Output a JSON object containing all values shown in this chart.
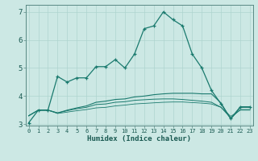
{
  "xlabel": "Humidex (Indice chaleur)",
  "background_color": "#cce8e4",
  "grid_color": "#aed4cf",
  "line_color": "#1a7a6e",
  "x_values": [
    0,
    1,
    2,
    3,
    4,
    5,
    6,
    7,
    8,
    9,
    10,
    11,
    12,
    13,
    14,
    15,
    16,
    17,
    18,
    19,
    20,
    21,
    22,
    23
  ],
  "series1": [
    3.05,
    3.5,
    3.5,
    4.7,
    4.5,
    4.65,
    4.65,
    5.05,
    5.05,
    5.3,
    5.0,
    5.5,
    6.4,
    6.5,
    7.0,
    6.72,
    6.5,
    5.5,
    5.0,
    4.2,
    3.72,
    3.2,
    3.62,
    3.62
  ],
  "series2": [
    3.3,
    3.5,
    3.5,
    3.4,
    3.5,
    3.58,
    3.65,
    3.78,
    3.82,
    3.88,
    3.9,
    3.97,
    4.0,
    4.05,
    4.08,
    4.1,
    4.1,
    4.1,
    4.08,
    4.08,
    3.75,
    3.18,
    3.6,
    3.6
  ],
  "series3": [
    3.3,
    3.5,
    3.5,
    3.4,
    3.48,
    3.55,
    3.6,
    3.7,
    3.72,
    3.78,
    3.8,
    3.85,
    3.87,
    3.89,
    3.9,
    3.9,
    3.88,
    3.85,
    3.82,
    3.78,
    3.6,
    3.22,
    3.52,
    3.52
  ],
  "series4": [
    3.3,
    3.5,
    3.5,
    3.38,
    3.43,
    3.48,
    3.52,
    3.58,
    3.6,
    3.65,
    3.68,
    3.72,
    3.74,
    3.76,
    3.78,
    3.79,
    3.79,
    3.77,
    3.75,
    3.72,
    3.6,
    3.28,
    3.5,
    3.5
  ],
  "ylim": [
    2.95,
    7.25
  ],
  "yticks": [
    3,
    4,
    5,
    6,
    7
  ],
  "xticks": [
    0,
    1,
    2,
    3,
    4,
    5,
    6,
    7,
    8,
    9,
    10,
    11,
    12,
    13,
    14,
    15,
    16,
    17,
    18,
    19,
    20,
    21,
    22,
    23
  ]
}
